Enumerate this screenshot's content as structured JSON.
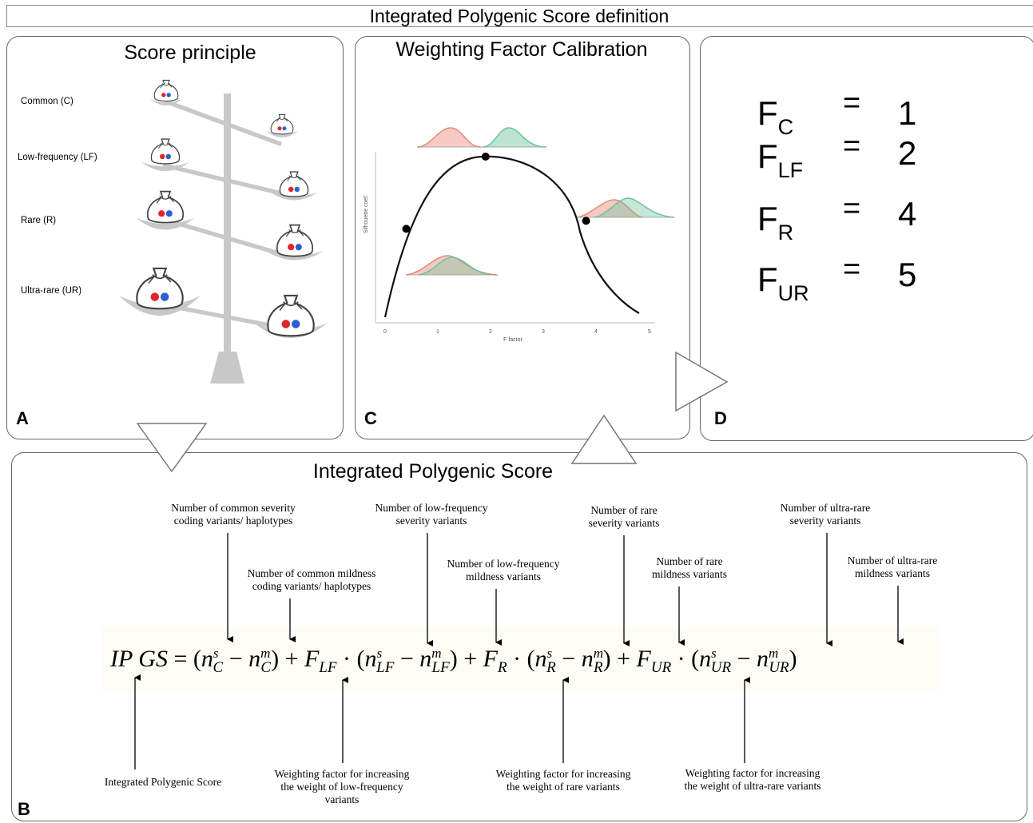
{
  "header": {
    "title": "Integrated Polygenic Score definition"
  },
  "panel_a": {
    "letter": "A",
    "title": "Score principle",
    "levels": [
      "Common (C)",
      "Low-frequency (LF)",
      "Rare (R)",
      "Ultra-rare (UR)"
    ]
  },
  "panel_c": {
    "letter": "C",
    "title": "Weighting Factor Calibration",
    "chart_data": {
      "type": "line",
      "xlabel": "F factor",
      "ylabel": "Silhouette coef.",
      "x_ticks": [
        "0",
        "1",
        "2",
        "3",
        "4",
        "5"
      ],
      "xlim": [
        0,
        5
      ],
      "points": [
        {
          "x": 0.4,
          "y": 0.55
        },
        {
          "x": 1.9,
          "y": 1.0
        },
        {
          "x": 3.8,
          "y": 0.6
        }
      ],
      "distribution_colors": [
        "#e8897a",
        "#6cc49a"
      ]
    }
  },
  "panel_d": {
    "letter": "D",
    "rows": [
      {
        "F": "F",
        "sub": "C",
        "eq": "=",
        "val": "1"
      },
      {
        "F": "F",
        "sub": "LF",
        "eq": "=",
        "val": "2"
      },
      {
        "F": "F",
        "sub": "R",
        "eq": "=",
        "val": "4"
      },
      {
        "F": "F",
        "sub": "UR",
        "eq": "=",
        "val": "5"
      }
    ]
  },
  "panel_b": {
    "letter": "B",
    "title": "Integrated Polygenic Score",
    "ann_top": {
      "c_sev_1": "Number of common severity",
      "c_sev_2": "coding variants/ haplotypes",
      "c_mil_1": "Number of common mildness",
      "c_mil_2": "coding variants/ haplotypes",
      "lf_sev_1": "Number of low-frequency",
      "lf_sev_2": "severity variants",
      "lf_mil_1": "Number of low-frequency",
      "lf_mil_2": "mildness variants",
      "r_sev_1": "Number of rare",
      "r_sev_2": "severity variants",
      "r_mil_1": "Number of rare",
      "r_mil_2": "mildness  variants",
      "ur_sev_1": "Number of ultra-rare",
      "ur_sev_2": "severity variants",
      "ur_mil_1": "Number of ultra-rare",
      "ur_mil_2": "mildness variants"
    },
    "ann_bottom": {
      "ipgs": "Integrated Polygenic Score",
      "wlf_1": "Weighting factor for increasing",
      "wlf_2": "the weight of low-frequency",
      "wlf_3": "variants",
      "wr_1": "Weighting factor for increasing",
      "wr_2": "the weight of rare variants",
      "wur_1": "Weighting factor for increasing",
      "wur_2": "the weight of ultra-rare variants"
    },
    "formula": {
      "lhs": "IP GS",
      "F_LF": "LF",
      "F_R": "R",
      "F_UR": "UR",
      "sup_s": "s",
      "sup_m": "m",
      "sub_C": "C",
      "sub_LF": "LF",
      "sub_R": "R",
      "sub_UR": "UR"
    }
  }
}
